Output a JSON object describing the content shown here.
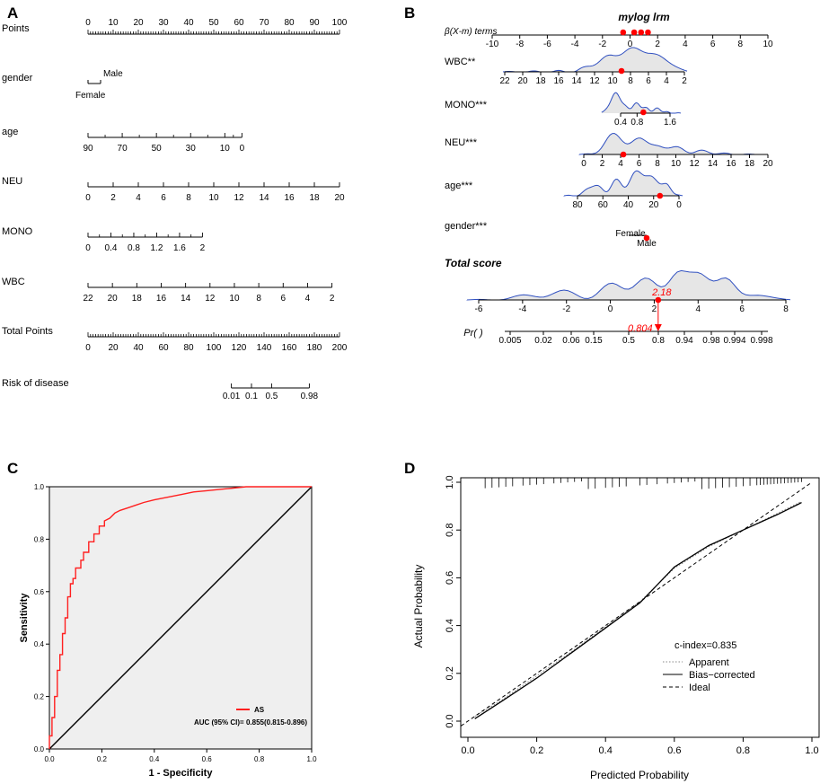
{
  "figure": {
    "panel_labels": [
      "A",
      "B",
      "C",
      "D"
    ]
  },
  "chart_data": [
    {
      "panel": "A",
      "type": "nomogram",
      "rows": [
        {
          "label": "Points",
          "ticks": [
            "0",
            "10",
            "20",
            "30",
            "40",
            "50",
            "60",
            "70",
            "80",
            "90",
            "100"
          ],
          "label_position": "above",
          "minor_per_major": 10,
          "range": [
            0,
            100
          ]
        },
        {
          "label": "gender",
          "ticks": [
            "Female",
            "Male"
          ],
          "values": [
            0,
            5
          ],
          "range": [
            0,
            100
          ]
        },
        {
          "label": "age",
          "ticks": [
            "90",
            "70",
            "50",
            "30",
            "10",
            "0"
          ],
          "values": [
            0,
            13.6,
            27.2,
            40.8,
            54.4,
            61.2
          ],
          "minor_values": [
            6.8,
            20.4,
            34,
            47.6,
            57.8
          ],
          "range": [
            0,
            100
          ]
        },
        {
          "label": "NEU",
          "ticks": [
            "0",
            "2",
            "4",
            "6",
            "8",
            "10",
            "12",
            "14",
            "16",
            "18",
            "20"
          ],
          "values": [
            0,
            10,
            20,
            30,
            40,
            50,
            60,
            70,
            80,
            90,
            100
          ],
          "range": [
            0,
            100
          ]
        },
        {
          "label": "MONO",
          "ticks": [
            "0",
            "0.4",
            "0.8",
            "1.2",
            "1.6",
            "2"
          ],
          "values": [
            0,
            9.1,
            18.2,
            27.3,
            36.4,
            45.5
          ],
          "minor_values": [
            4.55,
            13.65,
            22.75,
            31.85,
            40.95
          ],
          "range": [
            0,
            100
          ]
        },
        {
          "label": "WBC",
          "ticks": [
            "22",
            "20",
            "18",
            "16",
            "14",
            "12",
            "10",
            "8",
            "6",
            "4",
            "2"
          ],
          "values": [
            0,
            9.7,
            19.4,
            29.1,
            38.8,
            48.5,
            58.2,
            67.9,
            77.6,
            87.3,
            97
          ],
          "range": [
            0,
            100
          ]
        },
        {
          "label": "Total Points",
          "ticks": [
            "0",
            "20",
            "40",
            "60",
            "80",
            "100",
            "120",
            "140",
            "160",
            "180",
            "200"
          ],
          "minor_per_major": 5,
          "range": [
            0,
            200
          ]
        },
        {
          "label": "Risk of disease",
          "ticks": [
            "0.01",
            "0.1",
            "0.5",
            "0.98"
          ],
          "values": [
            57,
            65,
            73,
            88
          ],
          "range": [
            0,
            100
          ]
        }
      ]
    },
    {
      "panel": "B",
      "type": "nomogram-density",
      "title": "mylog lrm",
      "beta_label": "β(X-m) terms",
      "beta_axis": {
        "ticks": [
          "-10",
          "-8",
          "-6",
          "-4",
          "-2",
          "0",
          "2",
          "4",
          "6",
          "8",
          "10"
        ],
        "values": [
          -10,
          -8,
          -6,
          -4,
          -2,
          0,
          2,
          4,
          6,
          8,
          10
        ],
        "points": [
          -0.5,
          0.3,
          0.8,
          1.3
        ]
      },
      "variables": [
        {
          "label": "WBC**",
          "ticks": [
            "22",
            "20",
            "18",
            "16",
            "14",
            "12",
            "10",
            "8",
            "6",
            "4",
            "2"
          ],
          "values": [
            22,
            20,
            18,
            16,
            14,
            12,
            10,
            8,
            6,
            4,
            2
          ],
          "point": 9.0
        },
        {
          "label": "MONO***",
          "ticks": [
            "0.4",
            "0.8",
            "1.6"
          ],
          "values": [
            0.4,
            0.8,
            1.6
          ],
          "point": 0.8
        },
        {
          "label": "NEU***",
          "ticks": [
            "0",
            "2",
            "4",
            "6",
            "8",
            "10",
            "12",
            "14",
            "16",
            "18",
            "20"
          ],
          "values": [
            0,
            2,
            4,
            6,
            8,
            10,
            12,
            14,
            16,
            18,
            20
          ],
          "point": 4.3
        },
        {
          "label": "age***",
          "ticks": [
            "80",
            "60",
            "40",
            "20",
            "0"
          ],
          "values": [
            80,
            60,
            40,
            20,
            0
          ],
          "point": 15
        },
        {
          "label": "gender***",
          "ticks": [
            "Female",
            "Male"
          ],
          "point": "Male"
        }
      ],
      "total_score": {
        "label": "Total score",
        "ticks": [
          "-6",
          "-4",
          "-2",
          "0",
          "2",
          "4",
          "6",
          "8"
        ],
        "values": [
          -6,
          -4,
          -2,
          0,
          2,
          4,
          6,
          8
        ],
        "point": 2.18,
        "point_label": "2.18"
      },
      "probability": {
        "label": "Pr( )",
        "ticks": [
          "0.005",
          "0.02",
          "0.06",
          "0.15",
          "0.5",
          "0.8",
          "0.94",
          "0.98",
          "0.994",
          "0.998"
        ],
        "values": [
          0.005,
          0.02,
          0.06,
          0.15,
          0.5,
          0.8,
          0.94,
          0.98,
          0.994,
          0.998
        ],
        "point": 0.804,
        "point_label": "0.804"
      }
    },
    {
      "panel": "C",
      "type": "line",
      "title": "",
      "xlabel": "1 - Specificity",
      "ylabel": "Sensitivity",
      "xlim": [
        0,
        1
      ],
      "ylim": [
        0,
        1
      ],
      "x_ticks": [
        "0.0",
        "0.2",
        "0.4",
        "0.6",
        "0.8",
        "1.0"
      ],
      "y_ticks": [
        "0.0",
        "0.2",
        "0.4",
        "0.6",
        "0.8",
        "1.0"
      ],
      "series": [
        {
          "name": "AS",
          "color": "#ff2020",
          "x": [
            0,
            0,
            0.01,
            0.01,
            0.02,
            0.02,
            0.03,
            0.03,
            0.04,
            0.04,
            0.05,
            0.05,
            0.06,
            0.06,
            0.07,
            0.07,
            0.08,
            0.08,
            0.09,
            0.09,
            0.1,
            0.1,
            0.12,
            0.12,
            0.13,
            0.13,
            0.15,
            0.15,
            0.17,
            0.17,
            0.19,
            0.19,
            0.21,
            0.21,
            0.23,
            0.25,
            0.27,
            0.3,
            0.33,
            0.36,
            0.4,
            0.45,
            0.5,
            0.55,
            0.6,
            0.65,
            0.7,
            0.75,
            0.8,
            1.0
          ],
          "y": [
            0,
            0.05,
            0.05,
            0.12,
            0.12,
            0.2,
            0.2,
            0.3,
            0.3,
            0.36,
            0.36,
            0.44,
            0.44,
            0.5,
            0.5,
            0.58,
            0.58,
            0.63,
            0.63,
            0.65,
            0.65,
            0.69,
            0.69,
            0.72,
            0.72,
            0.75,
            0.75,
            0.79,
            0.79,
            0.82,
            0.82,
            0.85,
            0.85,
            0.87,
            0.88,
            0.9,
            0.91,
            0.92,
            0.93,
            0.94,
            0.95,
            0.96,
            0.97,
            0.98,
            0.985,
            0.99,
            0.995,
            1.0,
            1.0,
            1.0
          ]
        },
        {
          "name": "reference",
          "color": "#000000",
          "x": [
            0,
            1
          ],
          "y": [
            0,
            1
          ]
        }
      ],
      "legend": {
        "entry": "AS",
        "auc_text": "AUC (95% CI)= 0.855(0.815-0.896)",
        "position": "bottom-right"
      }
    },
    {
      "panel": "D",
      "type": "line",
      "xlabel": "Predicted Probability",
      "ylabel": "Actual Probability",
      "xlim": [
        -0.02,
        1.0
      ],
      "ylim": [
        -0.05,
        1.0
      ],
      "x_ticks": [
        "0.0",
        "0.2",
        "0.4",
        "0.6",
        "0.8",
        "1.0"
      ],
      "y_ticks": [
        "0.0",
        "0.2",
        "0.4",
        "0.6",
        "0.8",
        "1.0"
      ],
      "series": [
        {
          "name": "Apparent",
          "style": "dotted",
          "x": [
            0.02,
            0.1,
            0.2,
            0.3,
            0.4,
            0.5,
            0.55,
            0.6,
            0.7,
            0.8,
            0.9,
            0.97
          ],
          "y": [
            0.02,
            0.09,
            0.19,
            0.29,
            0.395,
            0.5,
            0.57,
            0.64,
            0.73,
            0.8,
            0.87,
            0.92
          ]
        },
        {
          "name": "Bias-corrected",
          "style": "solid",
          "x": [
            0.02,
            0.1,
            0.2,
            0.3,
            0.4,
            0.5,
            0.55,
            0.6,
            0.7,
            0.8,
            0.9,
            0.97
          ],
          "y": [
            0.01,
            0.085,
            0.18,
            0.285,
            0.39,
            0.495,
            0.57,
            0.645,
            0.735,
            0.8,
            0.865,
            0.915
          ]
        },
        {
          "name": "Ideal",
          "style": "dashed",
          "x": [
            -0.02,
            1.0
          ],
          "y": [
            -0.02,
            1.0
          ]
        }
      ],
      "rug_x": [
        0.05,
        0.07,
        0.09,
        0.11,
        0.13,
        0.16,
        0.18,
        0.2,
        0.22,
        0.25,
        0.27,
        0.29,
        0.31,
        0.33,
        0.35,
        0.37,
        0.4,
        0.42,
        0.44,
        0.46,
        0.5,
        0.52,
        0.55,
        0.58,
        0.6,
        0.62,
        0.64,
        0.66,
        0.68,
        0.7,
        0.72,
        0.74,
        0.76,
        0.78,
        0.8,
        0.82,
        0.84,
        0.85,
        0.86,
        0.87,
        0.88,
        0.89,
        0.9,
        0.91,
        0.92,
        0.93,
        0.94,
        0.95,
        0.96,
        0.97
      ],
      "annotation": "c-index=0.835",
      "legend": {
        "entries": [
          "Apparent",
          "Bias−corrected",
          "Ideal"
        ],
        "position": "bottom-right"
      }
    }
  ]
}
